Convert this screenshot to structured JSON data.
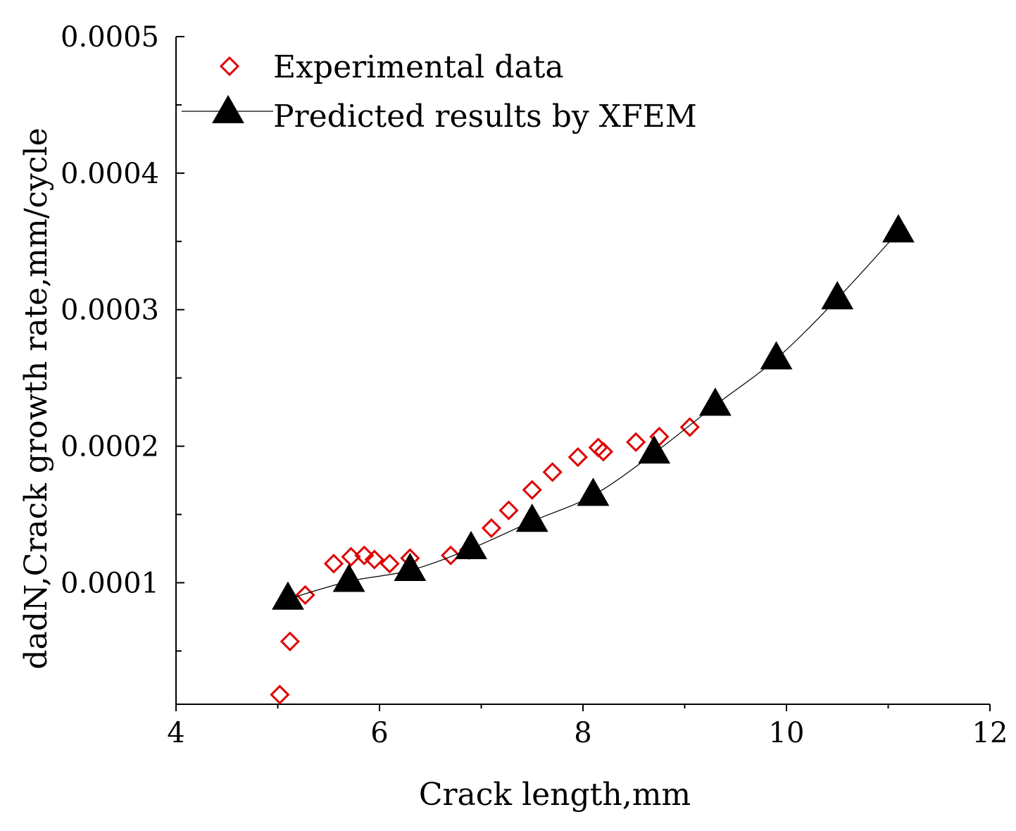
{
  "chart_data": {
    "type": "scatter",
    "title": "",
    "xlabel": "Crack length,mm",
    "ylabel": "dadN,Crack growth rate,mm/cycle",
    "xlim": [
      4,
      12
    ],
    "ylim": [
      1.1e-05,
      0.0005
    ],
    "x_ticks": [
      4,
      6,
      8,
      10,
      12
    ],
    "x_tick_labels": [
      "4",
      "6",
      "8",
      "10",
      "12"
    ],
    "y_ticks": [
      0.0001,
      0.0002,
      0.0003,
      0.0004,
      0.0005
    ],
    "y_tick_labels": [
      "0.0001",
      "0.0002",
      "0.0003",
      "0.0004",
      "0.0005"
    ],
    "y_minor_ticks": [
      5e-05,
      0.00015,
      0.00025,
      0.00035,
      0.00045
    ],
    "legend_position": "top-left",
    "series": [
      {
        "name": "Experimental data",
        "marker": "diamond-open",
        "color": "#e00000",
        "line": false,
        "x": [
          5.02,
          5.12,
          5.27,
          5.55,
          5.72,
          5.85,
          5.95,
          6.1,
          6.3,
          6.7,
          6.88,
          7.1,
          7.27,
          7.5,
          7.7,
          7.95,
          8.15,
          8.2,
          8.52,
          8.75,
          9.05
        ],
        "y": [
          1.8e-05,
          5.7e-05,
          9.1e-05,
          0.000114,
          0.000119,
          0.00012,
          0.000117,
          0.000114,
          0.000118,
          0.00012,
          0.000124,
          0.00014,
          0.000153,
          0.000168,
          0.000181,
          0.000192,
          0.000199,
          0.000196,
          0.000203,
          0.000207,
          0.000214
        ]
      },
      {
        "name": "Predicted results by XFEM",
        "marker": "triangle-filled",
        "color": "#000000",
        "line": true,
        "x": [
          5.1,
          5.7,
          6.3,
          6.9,
          7.5,
          8.1,
          8.7,
          9.3,
          9.9,
          10.5,
          11.1
        ],
        "y": [
          8.8e-05,
          0.000101,
          0.000109,
          0.000125,
          0.000145,
          0.000164,
          0.000195,
          0.00023,
          0.000264,
          0.000308,
          0.000357
        ]
      }
    ]
  }
}
